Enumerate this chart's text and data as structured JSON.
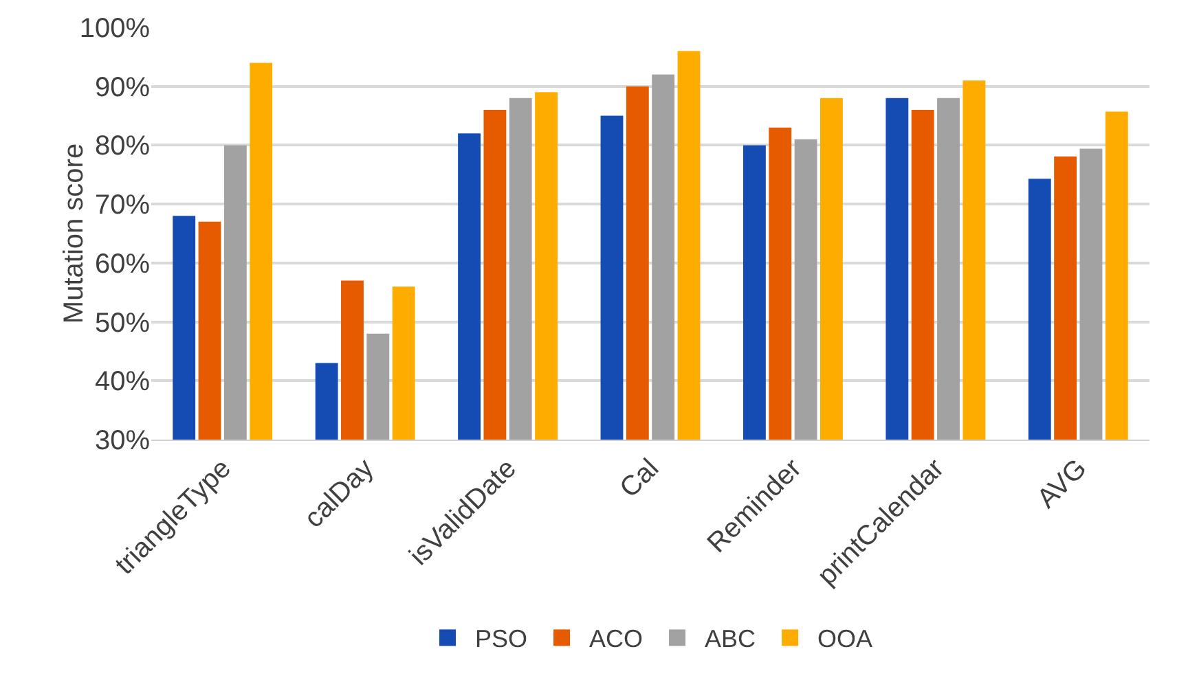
{
  "chart_data": {
    "type": "bar",
    "ylabel": "Mutation score",
    "categories": [
      "triangleType",
      "calDay",
      "isValidDate",
      "Cal",
      "Reminder",
      "printCalendar",
      "AVG"
    ],
    "series": [
      {
        "name": "PSO",
        "color": "#144cb4",
        "values": [
          68,
          43,
          82,
          85,
          80,
          88,
          74.3
        ]
      },
      {
        "name": "ACO",
        "color": "#e65a00",
        "values": [
          67,
          57,
          86,
          90,
          83,
          86,
          78.1
        ]
      },
      {
        "name": "ABC",
        "color": "#a2a2a2",
        "values": [
          80,
          48,
          88,
          92,
          81,
          88,
          79.4
        ]
      },
      {
        "name": "OOA",
        "color": "#ffac00",
        "values": [
          94,
          56,
          89,
          96,
          88,
          91,
          85.7
        ]
      }
    ],
    "ylim": [
      30,
      100
    ],
    "yticks": [
      {
        "value": 30,
        "label": "30%"
      },
      {
        "value": 40,
        "label": "40%"
      },
      {
        "value": 50,
        "label": "50%"
      },
      {
        "value": 60,
        "label": "60%"
      },
      {
        "value": 70,
        "label": "70%"
      },
      {
        "value": 80,
        "label": "80%"
      },
      {
        "value": 90,
        "label": "90%"
      },
      {
        "value": 100,
        "label": "100%"
      }
    ],
    "grid": "y",
    "legend": "bottom"
  }
}
